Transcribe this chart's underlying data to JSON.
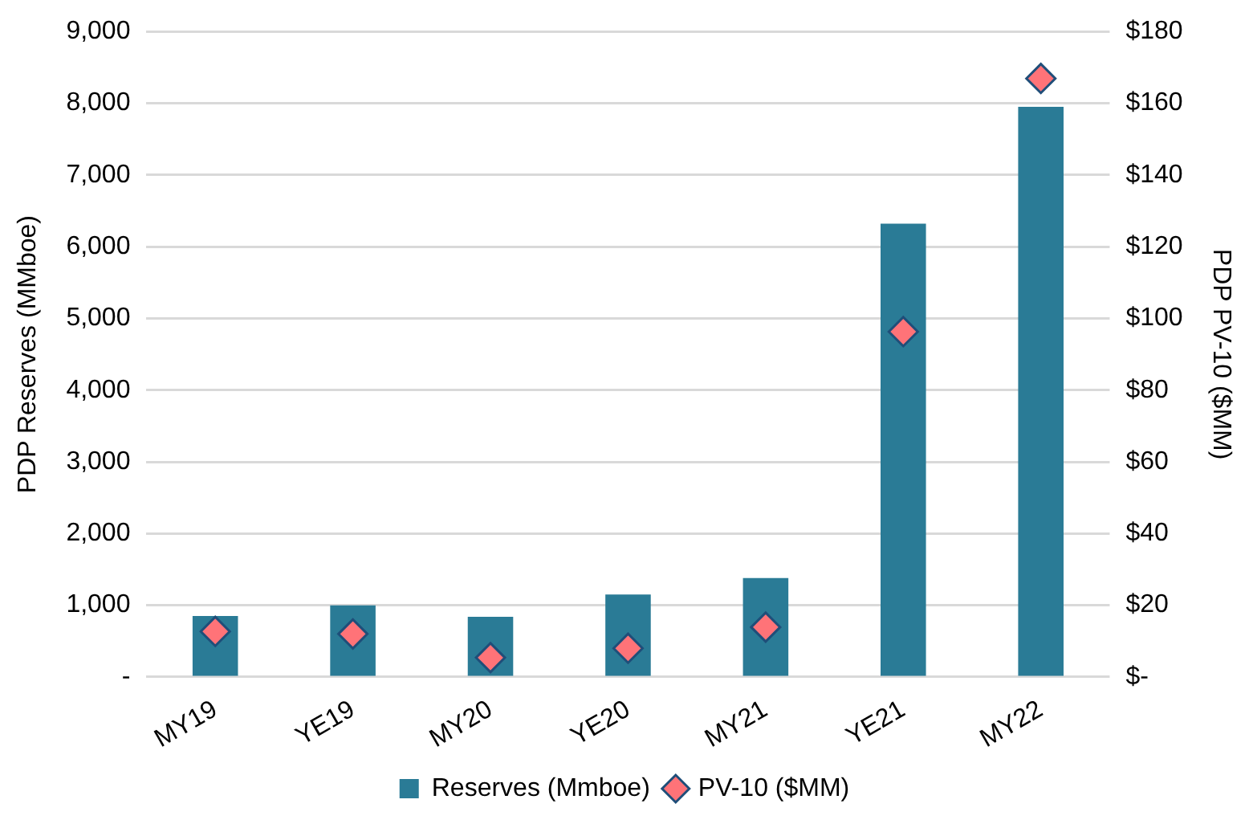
{
  "chart_data": {
    "type": "bar",
    "categories": [
      "MY19",
      "YE19",
      "MY20",
      "YE20",
      "MY21",
      "YE21",
      "MY22"
    ],
    "series": [
      {
        "name": "Reserves (Mmboe)",
        "color": "#2a7b96",
        "values": [
          850,
          1000,
          840,
          1150,
          1380,
          6320,
          7950
        ]
      },
      {
        "name": "PV-10 ($MM)",
        "type": "scatter",
        "axis": "y2",
        "color": "#ff7378",
        "marker": "diamond",
        "values": [
          12.7,
          12,
          5.4,
          8,
          13.9,
          96.3,
          166.9
        ]
      }
    ],
    "ylabel": "PDP Reserves (MMboe)",
    "y2label": "PDP PV-10 ($MM)",
    "ylim": [
      0,
      9000
    ],
    "yticks": [
      {
        "value": 0,
        "label": "-"
      },
      {
        "value": 1000,
        "label": "1,000"
      },
      {
        "value": 2000,
        "label": "2,000"
      },
      {
        "value": 3000,
        "label": "3,000"
      },
      {
        "value": 4000,
        "label": "4,000"
      },
      {
        "value": 5000,
        "label": "5,000"
      },
      {
        "value": 6000,
        "label": "6,000"
      },
      {
        "value": 7000,
        "label": "7,000"
      },
      {
        "value": 8000,
        "label": "8,000"
      },
      {
        "value": 9000,
        "label": "9,000"
      }
    ],
    "y2lim": [
      0,
      180
    ],
    "y2ticks": [
      {
        "value": 0,
        "label": "$-"
      },
      {
        "value": 20,
        "label": "$20"
      },
      {
        "value": 40,
        "label": "$40"
      },
      {
        "value": 60,
        "label": "$60"
      },
      {
        "value": 80,
        "label": "$80"
      },
      {
        "value": 100,
        "label": "$100"
      },
      {
        "value": 120,
        "label": "$120"
      },
      {
        "value": 140,
        "label": "$140"
      },
      {
        "value": 160,
        "label": "$160"
      },
      {
        "value": 180,
        "label": "$180"
      }
    ],
    "grid": "y",
    "legend": "bottom"
  }
}
